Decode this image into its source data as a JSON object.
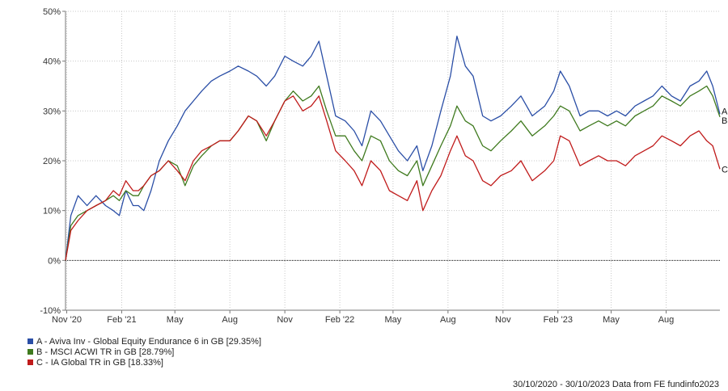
{
  "chart_data": {
    "type": "line",
    "title": "",
    "xlabel": "",
    "ylabel": "",
    "ylim": [
      -10,
      50
    ],
    "yticks": [
      -10,
      0,
      10,
      20,
      30,
      40,
      50
    ],
    "ytick_labels": [
      "-10%",
      "0%",
      "10%",
      "20%",
      "30%",
      "40%",
      "50%"
    ],
    "xticks": [
      {
        "label": "Nov '20",
        "x": "2020-11-01"
      },
      {
        "label": "Feb '21",
        "x": "2021-02-01"
      },
      {
        "label": "May",
        "x": "2021-05-01"
      },
      {
        "label": "Aug",
        "x": "2021-08-01"
      },
      {
        "label": "Nov",
        "x": "2021-11-01"
      },
      {
        "label": "Feb '22",
        "x": "2022-02-01"
      },
      {
        "label": "May",
        "x": "2022-05-01"
      },
      {
        "label": "Aug",
        "x": "2022-08-01"
      },
      {
        "label": "Nov",
        "x": "2022-11-01"
      },
      {
        "label": "Feb '23",
        "x": "2023-02-01"
      },
      {
        "label": "May",
        "x": "2023-05-01"
      },
      {
        "label": "Aug",
        "x": "2023-08-01"
      }
    ],
    "xlim": [
      "2020-10-30",
      "2023-10-30"
    ],
    "grid": true,
    "series": [
      {
        "name": "A - Aviva Inv - Global Equity Endurance 6 in GB [29.35%]",
        "end_label": "A",
        "color": "#2a4ea6",
        "points": [
          [
            "2020-10-30",
            0
          ],
          [
            "2020-11-08",
            9
          ],
          [
            "2020-11-20",
            13
          ],
          [
            "2020-12-05",
            11
          ],
          [
            "2020-12-20",
            13
          ],
          [
            "2021-01-05",
            11
          ],
          [
            "2021-01-18",
            10
          ],
          [
            "2021-01-28",
            9
          ],
          [
            "2021-02-08",
            14
          ],
          [
            "2021-02-20",
            11
          ],
          [
            "2021-03-01",
            11
          ],
          [
            "2021-03-10",
            10
          ],
          [
            "2021-03-22",
            14
          ],
          [
            "2021-04-05",
            20
          ],
          [
            "2021-04-20",
            24
          ],
          [
            "2021-05-05",
            27
          ],
          [
            "2021-05-18",
            30
          ],
          [
            "2021-06-01",
            32
          ],
          [
            "2021-06-15",
            34
          ],
          [
            "2021-07-01",
            36
          ],
          [
            "2021-07-15",
            37
          ],
          [
            "2021-08-01",
            38
          ],
          [
            "2021-08-15",
            39
          ],
          [
            "2021-09-01",
            38
          ],
          [
            "2021-09-15",
            37
          ],
          [
            "2021-10-01",
            35
          ],
          [
            "2021-10-15",
            37
          ],
          [
            "2021-11-01",
            41
          ],
          [
            "2021-11-15",
            40
          ],
          [
            "2021-12-01",
            39
          ],
          [
            "2021-12-15",
            41
          ],
          [
            "2021-12-28",
            44
          ],
          [
            "2022-01-10",
            37
          ],
          [
            "2022-01-25",
            29
          ],
          [
            "2022-02-10",
            28
          ],
          [
            "2022-02-25",
            26
          ],
          [
            "2022-03-10",
            23
          ],
          [
            "2022-03-25",
            30
          ],
          [
            "2022-04-10",
            28
          ],
          [
            "2022-04-25",
            25
          ],
          [
            "2022-05-10",
            22
          ],
          [
            "2022-05-25",
            20
          ],
          [
            "2022-06-10",
            23
          ],
          [
            "2022-06-20",
            18
          ],
          [
            "2022-07-05",
            23
          ],
          [
            "2022-07-20",
            30
          ],
          [
            "2022-08-05",
            37
          ],
          [
            "2022-08-16",
            45
          ],
          [
            "2022-08-30",
            39
          ],
          [
            "2022-09-12",
            37
          ],
          [
            "2022-09-28",
            29
          ],
          [
            "2022-10-12",
            28
          ],
          [
            "2022-10-28",
            29
          ],
          [
            "2022-11-15",
            31
          ],
          [
            "2022-12-01",
            33
          ],
          [
            "2022-12-20",
            29
          ],
          [
            "2023-01-10",
            31
          ],
          [
            "2023-01-25",
            34
          ],
          [
            "2023-02-05",
            38
          ],
          [
            "2023-02-20",
            35
          ],
          [
            "2023-03-10",
            29
          ],
          [
            "2023-03-25",
            30
          ],
          [
            "2023-04-10",
            30
          ],
          [
            "2023-04-25",
            29
          ],
          [
            "2023-05-10",
            30
          ],
          [
            "2023-05-25",
            29
          ],
          [
            "2023-06-10",
            31
          ],
          [
            "2023-06-25",
            32
          ],
          [
            "2023-07-10",
            33
          ],
          [
            "2023-07-25",
            35
          ],
          [
            "2023-08-10",
            33
          ],
          [
            "2023-08-25",
            32
          ],
          [
            "2023-09-10",
            35
          ],
          [
            "2023-09-25",
            36
          ],
          [
            "2023-10-08",
            38
          ],
          [
            "2023-10-18",
            35
          ],
          [
            "2023-10-30",
            29.35
          ]
        ]
      },
      {
        "name": "B - MSCI ACWI TR in GB [28.79%]",
        "end_label": "B",
        "color": "#3f7a1e",
        "points": [
          [
            "2020-10-30",
            0
          ],
          [
            "2020-11-08",
            7
          ],
          [
            "2020-11-20",
            9
          ],
          [
            "2020-12-05",
            10
          ],
          [
            "2020-12-20",
            11
          ],
          [
            "2021-01-05",
            12
          ],
          [
            "2021-01-18",
            13
          ],
          [
            "2021-01-28",
            12
          ],
          [
            "2021-02-08",
            14
          ],
          [
            "2021-02-20",
            13
          ],
          [
            "2021-03-01",
            13
          ],
          [
            "2021-03-10",
            15
          ],
          [
            "2021-03-22",
            17
          ],
          [
            "2021-04-05",
            18
          ],
          [
            "2021-04-20",
            20
          ],
          [
            "2021-05-05",
            19
          ],
          [
            "2021-05-18",
            15
          ],
          [
            "2021-06-01",
            19
          ],
          [
            "2021-06-15",
            21
          ],
          [
            "2021-07-01",
            23
          ],
          [
            "2021-07-15",
            24
          ],
          [
            "2021-08-01",
            24
          ],
          [
            "2021-08-15",
            26
          ],
          [
            "2021-09-01",
            29
          ],
          [
            "2021-09-15",
            28
          ],
          [
            "2021-10-01",
            24
          ],
          [
            "2021-10-15",
            28
          ],
          [
            "2021-11-01",
            32
          ],
          [
            "2021-11-15",
            34
          ],
          [
            "2021-12-01",
            32
          ],
          [
            "2021-12-15",
            33
          ],
          [
            "2021-12-28",
            35
          ],
          [
            "2022-01-10",
            30
          ],
          [
            "2022-01-25",
            25
          ],
          [
            "2022-02-10",
            25
          ],
          [
            "2022-02-25",
            22
          ],
          [
            "2022-03-10",
            20
          ],
          [
            "2022-03-25",
            25
          ],
          [
            "2022-04-10",
            24
          ],
          [
            "2022-04-25",
            20
          ],
          [
            "2022-05-10",
            18
          ],
          [
            "2022-05-25",
            17
          ],
          [
            "2022-06-10",
            20
          ],
          [
            "2022-06-20",
            15
          ],
          [
            "2022-07-05",
            19
          ],
          [
            "2022-07-20",
            23
          ],
          [
            "2022-08-05",
            27
          ],
          [
            "2022-08-16",
            31
          ],
          [
            "2022-08-30",
            28
          ],
          [
            "2022-09-12",
            27
          ],
          [
            "2022-09-28",
            23
          ],
          [
            "2022-10-12",
            22
          ],
          [
            "2022-10-28",
            24
          ],
          [
            "2022-11-15",
            26
          ],
          [
            "2022-12-01",
            28
          ],
          [
            "2022-12-20",
            25
          ],
          [
            "2023-01-10",
            27
          ],
          [
            "2023-01-25",
            29
          ],
          [
            "2023-02-05",
            31
          ],
          [
            "2023-02-20",
            30
          ],
          [
            "2023-03-10",
            26
          ],
          [
            "2023-03-25",
            27
          ],
          [
            "2023-04-10",
            28
          ],
          [
            "2023-04-25",
            27
          ],
          [
            "2023-05-10",
            28
          ],
          [
            "2023-05-25",
            27
          ],
          [
            "2023-06-10",
            29
          ],
          [
            "2023-06-25",
            30
          ],
          [
            "2023-07-10",
            31
          ],
          [
            "2023-07-25",
            33
          ],
          [
            "2023-08-10",
            32
          ],
          [
            "2023-08-25",
            31
          ],
          [
            "2023-09-10",
            33
          ],
          [
            "2023-09-25",
            34
          ],
          [
            "2023-10-08",
            35
          ],
          [
            "2023-10-18",
            33
          ],
          [
            "2023-10-30",
            28.79
          ]
        ]
      },
      {
        "name": "C - IA Global TR in GB [18.33%]",
        "end_label": "C",
        "color": "#c01b1b",
        "points": [
          [
            "2020-10-30",
            0
          ],
          [
            "2020-11-08",
            6
          ],
          [
            "2020-11-20",
            8
          ],
          [
            "2020-12-05",
            10
          ],
          [
            "2020-12-20",
            11
          ],
          [
            "2021-01-05",
            12
          ],
          [
            "2021-01-18",
            14
          ],
          [
            "2021-01-28",
            13
          ],
          [
            "2021-02-08",
            16
          ],
          [
            "2021-02-20",
            14
          ],
          [
            "2021-03-01",
            14
          ],
          [
            "2021-03-10",
            15
          ],
          [
            "2021-03-22",
            17
          ],
          [
            "2021-04-05",
            18
          ],
          [
            "2021-04-20",
            20
          ],
          [
            "2021-05-05",
            18
          ],
          [
            "2021-05-18",
            16
          ],
          [
            "2021-06-01",
            20
          ],
          [
            "2021-06-15",
            22
          ],
          [
            "2021-07-01",
            23
          ],
          [
            "2021-07-15",
            24
          ],
          [
            "2021-08-01",
            24
          ],
          [
            "2021-08-15",
            26
          ],
          [
            "2021-09-01",
            29
          ],
          [
            "2021-09-15",
            28
          ],
          [
            "2021-10-01",
            25
          ],
          [
            "2021-10-15",
            28
          ],
          [
            "2021-11-01",
            32
          ],
          [
            "2021-11-15",
            33
          ],
          [
            "2021-12-01",
            30
          ],
          [
            "2021-12-15",
            31
          ],
          [
            "2021-12-28",
            33
          ],
          [
            "2022-01-10",
            28
          ],
          [
            "2022-01-25",
            22
          ],
          [
            "2022-02-10",
            20
          ],
          [
            "2022-02-25",
            18
          ],
          [
            "2022-03-10",
            15
          ],
          [
            "2022-03-25",
            20
          ],
          [
            "2022-04-10",
            18
          ],
          [
            "2022-04-25",
            14
          ],
          [
            "2022-05-10",
            13
          ],
          [
            "2022-05-25",
            12
          ],
          [
            "2022-06-10",
            16
          ],
          [
            "2022-06-20",
            10
          ],
          [
            "2022-07-05",
            14
          ],
          [
            "2022-07-20",
            17
          ],
          [
            "2022-08-05",
            22
          ],
          [
            "2022-08-16",
            25
          ],
          [
            "2022-08-30",
            21
          ],
          [
            "2022-09-12",
            20
          ],
          [
            "2022-09-28",
            16
          ],
          [
            "2022-10-12",
            15
          ],
          [
            "2022-10-28",
            17
          ],
          [
            "2022-11-15",
            18
          ],
          [
            "2022-12-01",
            20
          ],
          [
            "2022-12-20",
            16
          ],
          [
            "2023-01-10",
            18
          ],
          [
            "2023-01-25",
            20
          ],
          [
            "2023-02-05",
            25
          ],
          [
            "2023-02-20",
            24
          ],
          [
            "2023-03-10",
            19
          ],
          [
            "2023-03-25",
            20
          ],
          [
            "2023-04-10",
            21
          ],
          [
            "2023-04-25",
            20
          ],
          [
            "2023-05-10",
            20
          ],
          [
            "2023-05-25",
            19
          ],
          [
            "2023-06-10",
            21
          ],
          [
            "2023-06-25",
            22
          ],
          [
            "2023-07-10",
            23
          ],
          [
            "2023-07-25",
            25
          ],
          [
            "2023-08-10",
            24
          ],
          [
            "2023-08-25",
            23
          ],
          [
            "2023-09-10",
            25
          ],
          [
            "2023-09-25",
            26
          ],
          [
            "2023-10-08",
            24
          ],
          [
            "2023-10-18",
            23
          ],
          [
            "2023-10-30",
            18.33
          ]
        ]
      }
    ]
  },
  "footer": {
    "text": "30/10/2020 - 30/10/2023 Data from FE fundinfo2023"
  }
}
